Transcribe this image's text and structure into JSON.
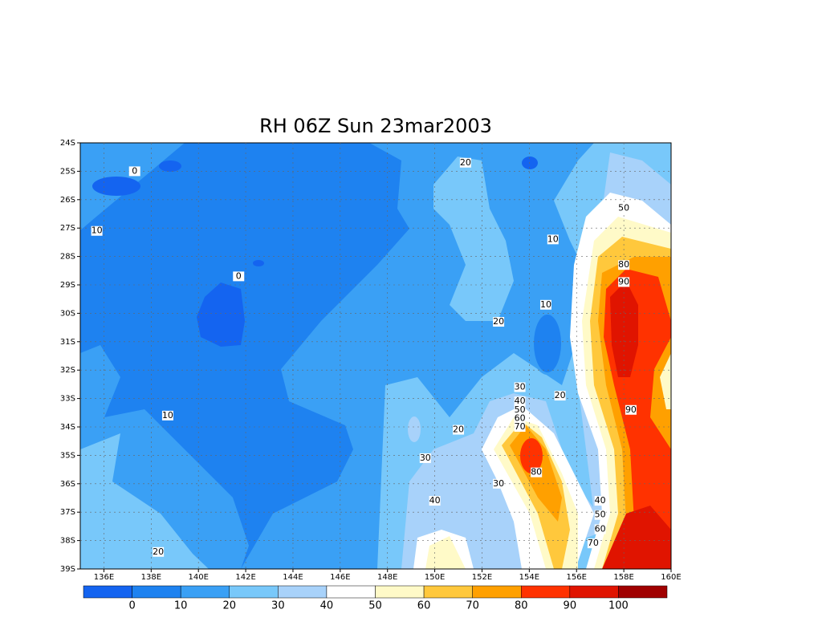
{
  "chart_data": {
    "type": "contour_map",
    "title": "RH 06Z Sun 23mar2003",
    "xlim": [
      135,
      160
    ],
    "ylim": [
      -39,
      -24
    ],
    "xticks": [
      {
        "value": 136,
        "label": "136E"
      },
      {
        "value": 138,
        "label": "138E"
      },
      {
        "value": 140,
        "label": "140E"
      },
      {
        "value": 142,
        "label": "142E"
      },
      {
        "value": 144,
        "label": "144E"
      },
      {
        "value": 146,
        "label": "146E"
      },
      {
        "value": 148,
        "label": "148E"
      },
      {
        "value": 150,
        "label": "150E"
      },
      {
        "value": 152,
        "label": "152E"
      },
      {
        "value": 154,
        "label": "154E"
      },
      {
        "value": 156,
        "label": "156E"
      },
      {
        "value": 158,
        "label": "158E"
      },
      {
        "value": 160,
        "label": "160E"
      }
    ],
    "yticks": [
      {
        "value": -24,
        "label": "24S"
      },
      {
        "value": -25,
        "label": "25S"
      },
      {
        "value": -26,
        "label": "26S"
      },
      {
        "value": -27,
        "label": "27S"
      },
      {
        "value": -28,
        "label": "28S"
      },
      {
        "value": -29,
        "label": "29S"
      },
      {
        "value": -30,
        "label": "30S"
      },
      {
        "value": -31,
        "label": "31S"
      },
      {
        "value": -32,
        "label": "32S"
      },
      {
        "value": -33,
        "label": "33S"
      },
      {
        "value": -34,
        "label": "34S"
      },
      {
        "value": -35,
        "label": "35S"
      },
      {
        "value": -36,
        "label": "36S"
      },
      {
        "value": -37,
        "label": "37S"
      },
      {
        "value": -38,
        "label": "38S"
      },
      {
        "value": -39,
        "label": "39S"
      }
    ],
    "grid": true,
    "colorbar": {
      "levels": [
        0,
        10,
        20,
        30,
        40,
        50,
        60,
        70,
        80,
        90,
        100
      ],
      "colors": [
        "#1464f0",
        "#1e82f0",
        "#3aa0f5",
        "#78c8fa",
        "#a8d2fa",
        "#ffffff",
        "#fffac8",
        "#ffc83c",
        "#ffa000",
        "#ff3200",
        "#e01400",
        "#a00000"
      ]
    },
    "contour_labels": [
      {
        "value": 0,
        "lon": 137.3,
        "lat": -25.0
      },
      {
        "value": 10,
        "lon": 135.7,
        "lat": -27.1
      },
      {
        "value": 0,
        "lon": 141.7,
        "lat": -28.7
      },
      {
        "value": 20,
        "lon": 151.3,
        "lat": -24.7
      },
      {
        "value": 10,
        "lon": 155.0,
        "lat": -27.4
      },
      {
        "value": 50,
        "lon": 158.0,
        "lat": -26.3
      },
      {
        "value": 80,
        "lon": 158.0,
        "lat": -28.3
      },
      {
        "value": 90,
        "lon": 158.0,
        "lat": -28.9
      },
      {
        "value": 10,
        "lon": 154.7,
        "lat": -29.7
      },
      {
        "value": 20,
        "lon": 152.7,
        "lat": -30.3
      },
      {
        "value": 30,
        "lon": 153.6,
        "lat": -32.6
      },
      {
        "value": 20,
        "lon": 155.3,
        "lat": -32.9
      },
      {
        "value": 40,
        "lon": 153.6,
        "lat": -33.1
      },
      {
        "value": 50,
        "lon": 153.6,
        "lat": -33.4
      },
      {
        "value": 60,
        "lon": 153.6,
        "lat": -33.7
      },
      {
        "value": 70,
        "lon": 153.6,
        "lat": -34.0
      },
      {
        "value": 10,
        "lon": 138.7,
        "lat": -33.6
      },
      {
        "value": 90,
        "lon": 158.3,
        "lat": -33.4
      },
      {
        "value": 20,
        "lon": 151.0,
        "lat": -34.1
      },
      {
        "value": 30,
        "lon": 149.6,
        "lat": -35.1
      },
      {
        "value": 80,
        "lon": 154.3,
        "lat": -35.6
      },
      {
        "value": 30,
        "lon": 152.7,
        "lat": -36.0
      },
      {
        "value": 40,
        "lon": 150.0,
        "lat": -36.6
      },
      {
        "value": 40,
        "lon": 157.0,
        "lat": -36.6
      },
      {
        "value": 50,
        "lon": 157.0,
        "lat": -37.1
      },
      {
        "value": 60,
        "lon": 157.0,
        "lat": -37.6
      },
      {
        "value": 70,
        "lon": 156.7,
        "lat": -38.1
      },
      {
        "value": 20,
        "lon": 138.3,
        "lat": -38.4
      }
    ]
  }
}
